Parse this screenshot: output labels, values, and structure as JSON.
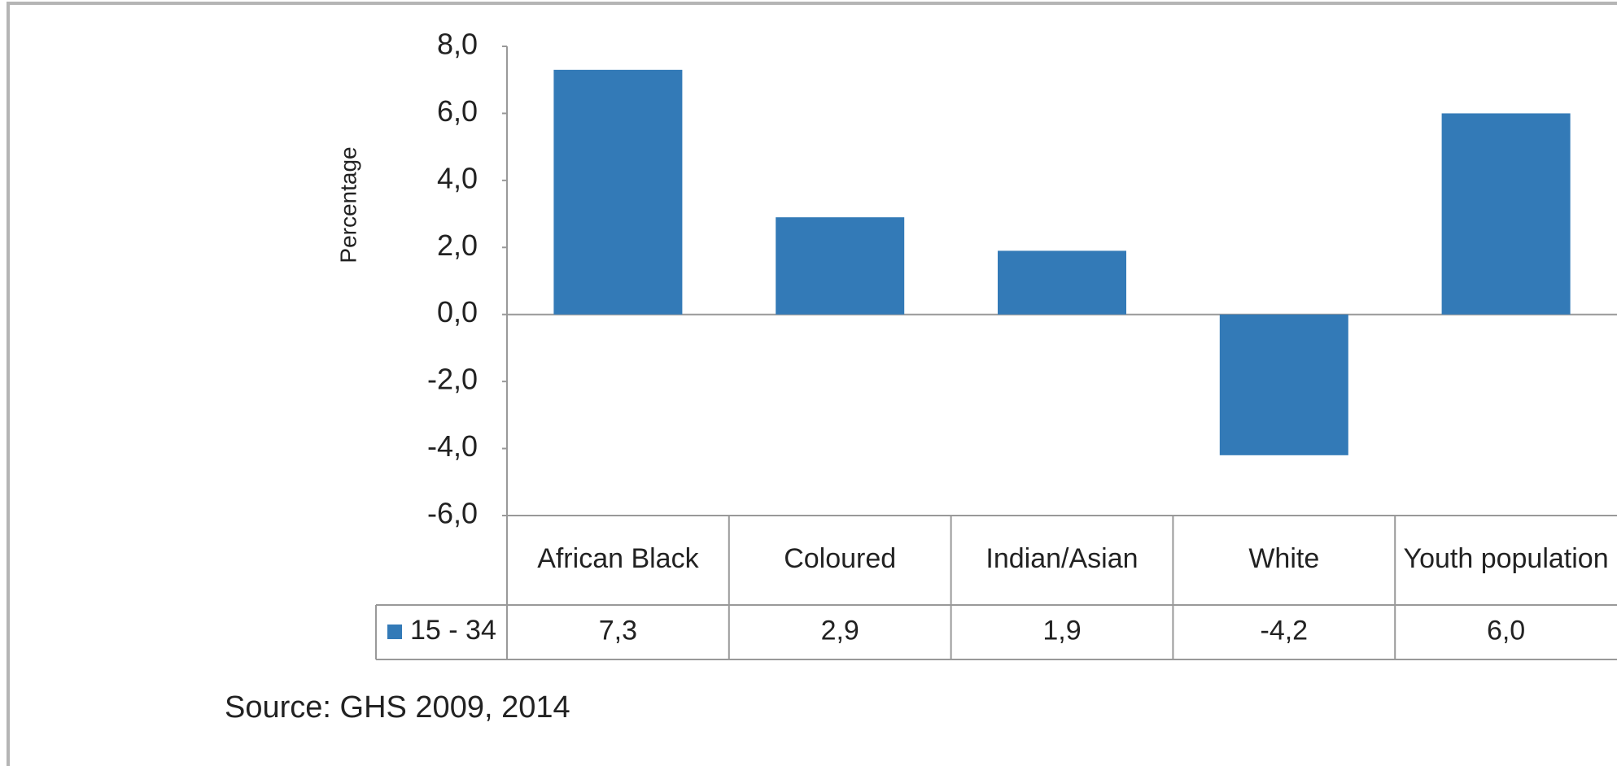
{
  "chart_data": {
    "type": "bar",
    "y_label": "Percentage",
    "categories": [
      "African Black",
      "Coloured",
      "Indian/Asian",
      "White",
      "Youth population"
    ],
    "series": [
      {
        "name": "15 - 34",
        "color": "#337ab7",
        "values": [
          7.3,
          2.9,
          1.9,
          -4.2,
          6.0
        ],
        "value_labels": [
          "7,3",
          "2,9",
          "1,9",
          "-4,2",
          "6,0"
        ]
      }
    ],
    "ylim": [
      -6,
      8
    ],
    "yticks": [
      {
        "value": 8,
        "label": "8,0"
      },
      {
        "value": 6,
        "label": "6,0"
      },
      {
        "value": 4,
        "label": "4,0"
      },
      {
        "value": 2,
        "label": "2,0"
      },
      {
        "value": 0,
        "label": "0,0"
      },
      {
        "value": -2,
        "label": "-2,0"
      },
      {
        "value": -4,
        "label": "-4,0"
      },
      {
        "value": -6,
        "label": "-6,0"
      }
    ],
    "source": "Source: GHS 2009, 2014"
  }
}
